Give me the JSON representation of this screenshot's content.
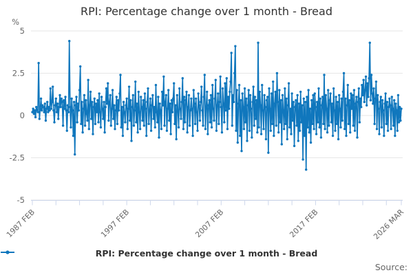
{
  "source_label": "Source:",
  "colors": {
    "line": "#1077bd",
    "grid": "#e6e6e6",
    "axis": "#ccd6eb",
    "tick_label": "#666666",
    "title": "#333333"
  },
  "chart_data": {
    "type": "line",
    "title": "RPI: Percentage change over 1 month - Bread",
    "xlabel": "",
    "ylabel": "%",
    "ylim": [
      -5,
      5
    ],
    "yticks": [
      5,
      2.5,
      0,
      -2.5,
      -5
    ],
    "ytick_labels": [
      "5",
      "2.5",
      "0",
      "-2.5",
      "-5"
    ],
    "grid": "horizontal",
    "legend_position": "bottom-center",
    "x_start": "1987 FEB",
    "x_end": "2026 MAR",
    "x_minor_tick_every_months": 30,
    "x_major_labels": [
      {
        "month": 0,
        "label": "1987 FEB"
      },
      {
        "month": 120,
        "label": "1997 FEB"
      },
      {
        "month": 240,
        "label": "2007 FEB"
      },
      {
        "month": 360,
        "label": "2017 FEB"
      },
      {
        "month": 469,
        "label": "2026 MAR"
      }
    ],
    "series": [
      {
        "name": "RPI: Percentage change over 1 month - Bread",
        "start": "1987 FEB",
        "freq": "monthly",
        "values": [
          0.2,
          0.4,
          0.1,
          0.3,
          -0.1,
          0.5,
          0.3,
          0.2,
          3.1,
          -0.2,
          0.4,
          1.0,
          0.3,
          0.6,
          0.5,
          0.2,
          0.7,
          -0.3,
          0.4,
          0.8,
          0.2,
          0.5,
          0.3,
          1.6,
          0.4,
          0.8,
          1.7,
          0.3,
          -0.4,
          0.6,
          1.0,
          0.2,
          0.7,
          -0.2,
          0.5,
          1.2,
          0.5,
          1.0,
          0.8,
          -0.6,
          0.9,
          0.4,
          1.1,
          0.3,
          -0.9,
          0.6,
          0.2,
          4.4,
          0.5,
          -0.7,
          1.0,
          0.3,
          -1.2,
          0.8,
          -2.3,
          0.6,
          1.1,
          -0.4,
          0.7,
          0.3,
          1.5,
          2.9,
          -0.5,
          0.8,
          -1.0,
          0.4,
          1.2,
          -0.6,
          0.9,
          0.1,
          -0.3,
          2.1,
          -0.8,
          0.6,
          1.4,
          -0.2,
          0.8,
          -1.1,
          0.5,
          1.0,
          -0.5,
          0.7,
          0.2,
          0.9,
          -0.4,
          1.3,
          0.2,
          -0.7,
          1.1,
          0.4,
          -0.2,
          0.8,
          -1.0,
          0.5,
          1.6,
          0.7,
          1.9,
          -0.3,
          0.8,
          1.2,
          -0.6,
          0.4,
          1.5,
          -0.2,
          0.6,
          -0.8,
          0.3,
          1.1,
          -0.5,
          0.9,
          0.3,
          1.3,
          2.4,
          -0.7,
          0.5,
          -1.2,
          0.8,
          0.2,
          -0.4,
          0.6,
          1.0,
          -0.8,
          0.4,
          1.7,
          -0.3,
          0.9,
          -1.5,
          0.5,
          1.2,
          -0.6,
          0.3,
          2.0,
          -0.4,
          0.7,
          -1.0,
          1.4,
          0.2,
          -0.8,
          1.1,
          0.5,
          -0.3,
          0.9,
          -0.6,
          1.3,
          0.4,
          -1.2,
          0.8,
          1.6,
          -0.5,
          0.3,
          1.0,
          -0.9,
          0.6,
          1.2,
          -0.2,
          0.5,
          -0.7,
          1.8,
          0.2,
          -0.4,
          1.1,
          -1.3,
          0.7,
          0.3,
          -0.8,
          1.4,
          0.6,
          2.3,
          -0.6,
          0.8,
          1.2,
          -0.9,
          0.4,
          1.5,
          -0.3,
          0.7,
          -1.1,
          0.9,
          0.2,
          1.0,
          1.9,
          -0.5,
          0.6,
          -1.4,
          1.2,
          0.3,
          -0.7,
          1.6,
          0.4,
          -0.2,
          0.8,
          2.2,
          -0.8,
          1.1,
          -0.4,
          0.9,
          1.4,
          -1.0,
          0.5,
          1.2,
          -0.6,
          0.3,
          1.0,
          0.4,
          -1.2,
          1.5,
          0.7,
          -0.5,
          1.0,
          0.2,
          -0.9,
          1.3,
          0.6,
          -0.3,
          0.8,
          1.7,
          0.3,
          -0.6,
          1.1,
          2.4,
          -0.8,
          0.5,
          1.4,
          -1.1,
          0.6,
          0.9,
          -0.4,
          1.2,
          -0.7,
          1.8,
          0.4,
          -0.3,
          1.0,
          2.1,
          -0.9,
          0.6,
          1.3,
          -0.5,
          0.8,
          2.3,
          0.5,
          -1.0,
          1.6,
          0.7,
          -0.4,
          1.9,
          0.3,
          2.2,
          -0.8,
          1.1,
          0.4,
          1.4,
          2.0,
          3.7,
          -0.6,
          1.2,
          0.8,
          2.5,
          4.1,
          -0.9,
          1.5,
          -1.6,
          0.7,
          1.8,
          -1.2,
          0.9,
          -2.1,
          1.3,
          0.5,
          -0.8,
          1.6,
          -0.4,
          1.0,
          -1.5,
          0.6,
          1.5,
          -0.9,
          1.2,
          0.4,
          -1.3,
          0.8,
          1.7,
          -0.6,
          1.1,
          -0.2,
          0.9,
          -1.0,
          4.3,
          -0.7,
          1.4,
          0.6,
          -1.1,
          1.8,
          0.3,
          -0.8,
          1.2,
          0.5,
          -1.4,
          0.9,
          1.1,
          -2.2,
          1.6,
          0.4,
          -0.9,
          1.3,
          -0.5,
          2.0,
          -1.2,
          0.7,
          1.4,
          -0.6,
          2.5,
          0.8,
          -1.0,
          1.5,
          -0.4,
          0.9,
          -1.7,
          1.2,
          0.3,
          -0.8,
          1.6,
          -0.5,
          1.0,
          -1.4,
          0.6,
          1.9,
          -0.7,
          0.4,
          -1.1,
          1.3,
          -0.3,
          0.8,
          -1.8,
          0.5,
          0.9,
          -0.6,
          1.2,
          -1.5,
          0.7,
          -0.9,
          1.4,
          -0.4,
          0.6,
          -2.6,
          1.0,
          -1.2,
          0.8,
          -3.2,
          1.1,
          -0.7,
          1.5,
          -1.0,
          0.4,
          -1.6,
          0.9,
          -0.5,
          1.2,
          -0.8,
          1.3,
          0.5,
          -1.1,
          0.8,
          -0.4,
          1.6,
          -0.7,
          1.0,
          -1.3,
          0.6,
          1.1,
          -0.5,
          2.4,
          -0.8,
          1.2,
          0.4,
          -1.0,
          1.5,
          -0.6,
          0.9,
          1.3,
          -0.4,
          0.7,
          -1.2,
          1.6,
          0.3,
          -0.9,
          1.1,
          -0.5,
          0.8,
          -1.4,
          1.2,
          0.4,
          -0.7,
          1.0,
          -0.3,
          1.4,
          2.5,
          -0.8,
          1.0,
          -1.2,
          0.6,
          1.8,
          -0.5,
          0.9,
          -1.0,
          1.3,
          0.4,
          1.2,
          -0.6,
          1.5,
          -0.9,
          0.7,
          1.1,
          -1.3,
          0.8,
          1.6,
          -0.4,
          1.0,
          0.5,
          1.8,
          1.2,
          2.1,
          0.8,
          1.5,
          2.3,
          0.6,
          1.9,
          1.1,
          2.2,
          4.3,
          0.9,
          2.4,
          1.3,
          0.7,
          1.6,
          -0.5,
          1.0,
          2.0,
          -0.8,
          1.2,
          0.4,
          -1.1,
          0.8,
          1.1,
          -0.7,
          0.9,
          0.3,
          -1.2,
          0.7,
          1.3,
          -0.5,
          0.8,
          -0.9,
          0.5,
          1.0,
          0.6,
          -0.8,
          1.1,
          0.4,
          -0.6,
          0.9,
          -1.2,
          0.7,
          0.3,
          -0.9,
          1.2,
          -0.4,
          0.5,
          -0.3,
          0.4
        ]
      }
    ]
  }
}
